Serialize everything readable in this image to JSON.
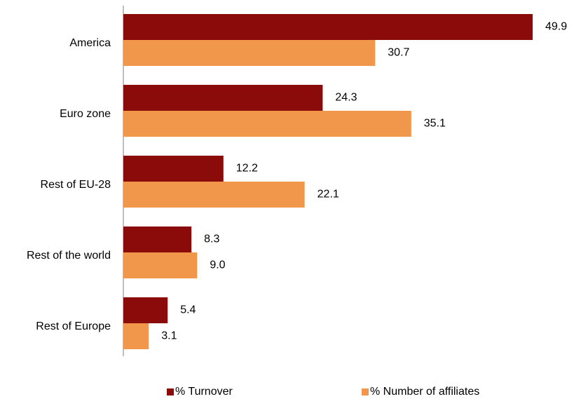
{
  "chart_data": {
    "type": "bar",
    "orientation": "horizontal",
    "categories": [
      "America",
      "Euro zone",
      "Rest of EU-28",
      "Rest of the world",
      "Rest of Europe"
    ],
    "series": [
      {
        "name": "% Turnover",
        "color": "#8b0a0a",
        "values": [
          49.9,
          24.3,
          12.2,
          8.3,
          5.4
        ],
        "labels": [
          "49.9",
          "24.3",
          "12.2",
          "8.3",
          "5.4"
        ]
      },
      {
        "name": "% Number of affiliates",
        "color": "#f0974b",
        "values": [
          30.7,
          35.1,
          22.1,
          9.0,
          3.1
        ],
        "labels": [
          "30.7",
          "35.1",
          "22.1",
          "9.0",
          "3.1"
        ]
      }
    ],
    "xlim": [
      0,
      55
    ],
    "grid": false,
    "legend_position": "bottom"
  }
}
